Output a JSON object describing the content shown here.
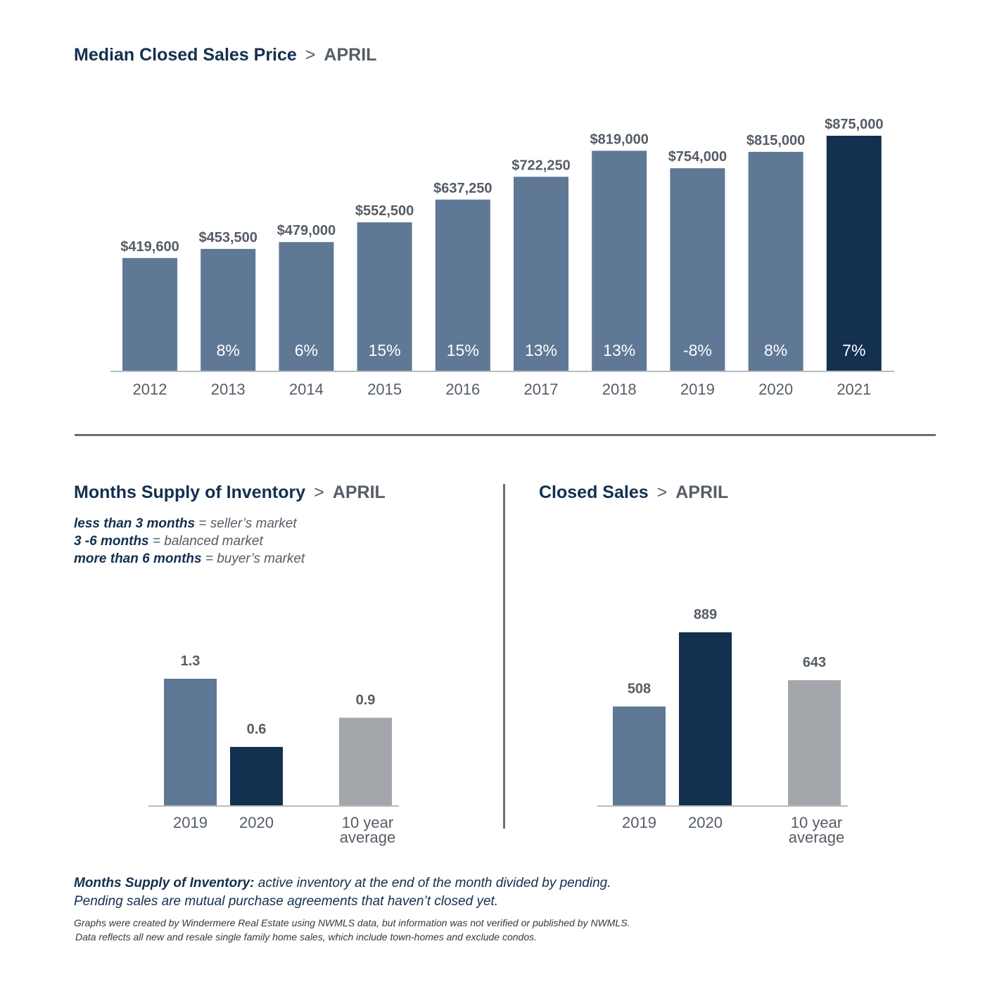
{
  "top": {
    "title": "Median Closed Sales Price",
    "separator": ">",
    "month": "APRIL"
  },
  "inventory": {
    "title": "Months Supply of Inventory",
    "separator": ">",
    "month": "APRIL",
    "legend": [
      {
        "key": "less than 3 months",
        "value": "= seller’s market"
      },
      {
        "key": "3 -6 months",
        "value": "= balanced market"
      },
      {
        "key": "more than 6 months",
        "value": "= buyer’s market"
      }
    ]
  },
  "sales": {
    "title": "Closed Sales",
    "separator": ">",
    "month": "APRIL"
  },
  "footnote": {
    "term": "Months Supply of Inventory:",
    "line1": "active inventory at the end of the month divided by pending.",
    "line2": "Pending sales are mutual purchase agreements that haven’t closed yet."
  },
  "credits": {
    "line1": "Graphs were created by Windermere Real Estate using NWMLS data, but information was not verified or published by NWMLS.",
    "line2": "Data reflects all new and resale single family home sales, which include town-homes and exclude condos."
  },
  "colors": {
    "bar": "#5f7896",
    "highlight": "#13304f",
    "average": "#a3a6aa",
    "axis": "#b8bbbe",
    "label": "#555d66"
  },
  "chart_data": [
    {
      "type": "bar",
      "title": "Median Closed Sales Price",
      "categories": [
        "2012",
        "2013",
        "2014",
        "2015",
        "2016",
        "2017",
        "2018",
        "2019",
        "2020",
        "2021"
      ],
      "values": [
        419600,
        453500,
        479000,
        552500,
        637250,
        722250,
        819000,
        754000,
        815000,
        875000
      ],
      "value_labels": [
        "$419,600",
        "$453,500",
        "$479,000",
        "$552,500",
        "$637,250",
        "$722,250",
        "$819,000",
        "$754,000",
        "$815,000",
        "$875,000"
      ],
      "change_labels": [
        "",
        "8%",
        "6%",
        "15%",
        "15%",
        "13%",
        "13%",
        "-8%",
        "8%",
        "7%"
      ],
      "highlight_index": 9,
      "grid": false
    },
    {
      "type": "bar",
      "title": "Months Supply of Inventory",
      "categories": [
        "2019",
        "2020",
        "10 year average"
      ],
      "category_lines": [
        [
          "2019"
        ],
        [
          "2020"
        ],
        [
          "10 year",
          "average"
        ]
      ],
      "values": [
        1.3,
        0.6,
        0.9
      ],
      "value_labels": [
        "1.3",
        "0.6",
        "0.9"
      ],
      "grid": false
    },
    {
      "type": "bar",
      "title": "Closed Sales",
      "categories": [
        "2019",
        "2020",
        "10 year average"
      ],
      "category_lines": [
        [
          "2019"
        ],
        [
          "2020"
        ],
        [
          "10 year",
          "average"
        ]
      ],
      "values": [
        508,
        889,
        643
      ],
      "value_labels": [
        "508",
        "889",
        "643"
      ],
      "grid": false
    }
  ]
}
